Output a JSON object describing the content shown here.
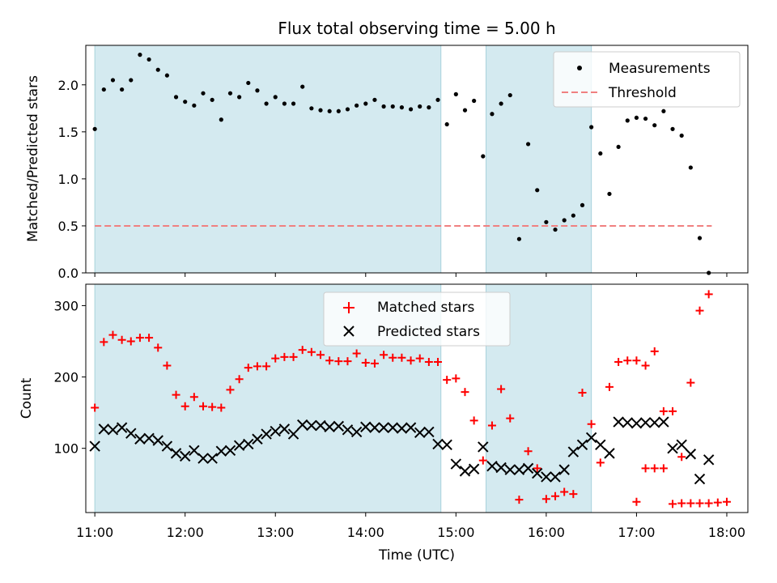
{
  "title": "Flux total observing time = 5.00 h",
  "chart_data": [
    {
      "type": "scatter",
      "panel": "top",
      "ylabel": "Matched/Predicted stars",
      "xlabel": "",
      "x_range": [
        "10:54",
        "18:14"
      ],
      "ylim": [
        0,
        2.42
      ],
      "yticks": [
        0.0,
        0.5,
        1.0,
        1.5,
        2.0
      ],
      "ytick_labels": [
        "0.0",
        "0.5",
        "1.0",
        "1.5",
        "2.0"
      ],
      "grid": false,
      "legend_position": "top-right",
      "shaded_intervals": [
        [
          "11:00",
          "14:50"
        ],
        [
          "15:20",
          "16:30"
        ]
      ],
      "shade_color": "#d4eaf0",
      "threshold": {
        "name": "Threshold",
        "value": 0.5,
        "x_start": "11:00",
        "x_end": "17:50",
        "color": "#f08080"
      },
      "series": [
        {
          "name": "Measurements",
          "color": "#000000",
          "x": [
            "11:00",
            "11:06",
            "11:12",
            "11:18",
            "11:24",
            "11:30",
            "11:36",
            "11:42",
            "11:48",
            "11:54",
            "12:00",
            "12:06",
            "12:12",
            "12:18",
            "12:24",
            "12:30",
            "12:36",
            "12:42",
            "12:48",
            "12:54",
            "13:00",
            "13:06",
            "13:12",
            "13:18",
            "13:24",
            "13:30",
            "13:36",
            "13:42",
            "13:48",
            "13:54",
            "14:00",
            "14:06",
            "14:12",
            "14:18",
            "14:24",
            "14:30",
            "14:36",
            "14:42",
            "14:48",
            "14:54",
            "15:00",
            "15:06",
            "15:12",
            "15:18",
            "15:24",
            "15:30",
            "15:36",
            "15:42",
            "15:48",
            "15:54",
            "16:00",
            "16:06",
            "16:12",
            "16:18",
            "16:24",
            "16:30",
            "16:36",
            "16:42",
            "16:48",
            "16:54",
            "17:00",
            "17:06",
            "17:12",
            "17:18",
            "17:24",
            "17:30",
            "17:36",
            "17:42",
            "17:48"
          ],
          "y": [
            1.53,
            1.95,
            2.05,
            1.95,
            2.05,
            2.32,
            2.27,
            2.16,
            2.1,
            1.87,
            1.82,
            1.78,
            1.91,
            1.84,
            1.63,
            1.91,
            1.87,
            2.02,
            1.94,
            1.8,
            1.87,
            1.8,
            1.8,
            1.98,
            1.75,
            1.73,
            1.72,
            1.72,
            1.74,
            1.78,
            1.8,
            1.84,
            1.77,
            1.77,
            1.76,
            1.74,
            1.77,
            1.76,
            1.84,
            1.58,
            1.9,
            1.73,
            1.83,
            1.24,
            1.69,
            1.8,
            1.89,
            0.36,
            1.37,
            0.88,
            0.54,
            0.46,
            0.56,
            0.61,
            0.72,
            1.55,
            1.27,
            0.84,
            1.34,
            1.62,
            1.65,
            1.64,
            1.57,
            1.72,
            1.53,
            1.46,
            1.12,
            0.37,
            0.0
          ]
        }
      ]
    },
    {
      "type": "scatter",
      "panel": "bottom",
      "ylabel": "Count",
      "xlabel": "Time (UTC)",
      "x_range": [
        "10:54",
        "18:14"
      ],
      "xticks": [
        "11:00",
        "12:00",
        "13:00",
        "14:00",
        "15:00",
        "16:00",
        "17:00",
        "18:00"
      ],
      "ylim": [
        10,
        330
      ],
      "yticks": [
        100,
        200,
        300
      ],
      "ytick_labels": [
        "100",
        "200",
        "300"
      ],
      "grid": false,
      "legend_position": "top-center",
      "shaded_intervals": [
        [
          "11:00",
          "14:50"
        ],
        [
          "15:20",
          "16:30"
        ]
      ],
      "shade_color": "#d4eaf0",
      "series": [
        {
          "name": "Matched stars",
          "color": "#ff0000",
          "marker": "+",
          "x": [
            "11:00",
            "11:06",
            "11:12",
            "11:18",
            "11:24",
            "11:30",
            "11:36",
            "11:42",
            "11:48",
            "11:54",
            "12:00",
            "12:06",
            "12:12",
            "12:18",
            "12:24",
            "12:30",
            "12:36",
            "12:42",
            "12:48",
            "12:54",
            "13:00",
            "13:06",
            "13:12",
            "13:18",
            "13:24",
            "13:30",
            "13:36",
            "13:42",
            "13:48",
            "13:54",
            "14:00",
            "14:06",
            "14:12",
            "14:18",
            "14:24",
            "14:30",
            "14:36",
            "14:42",
            "14:48",
            "14:54",
            "15:00",
            "15:06",
            "15:12",
            "15:18",
            "15:24",
            "15:30",
            "15:36",
            "15:42",
            "15:48",
            "15:54",
            "16:00",
            "16:06",
            "16:12",
            "16:18",
            "16:24",
            "16:30",
            "16:36",
            "16:42",
            "16:48",
            "16:54",
            "17:00",
            "17:06",
            "17:12",
            "17:18",
            "17:24",
            "17:30",
            "17:36",
            "17:42",
            "17:48",
            "17:54",
            "18:00"
          ],
          "y": [
            157,
            249,
            259,
            252,
            250,
            255,
            255,
            241,
            216,
            175,
            159,
            172,
            159,
            158,
            157,
            182,
            197,
            213,
            215,
            215,
            226,
            228,
            228,
            238,
            235,
            231,
            223,
            222,
            222,
            233,
            220,
            219,
            231,
            227,
            227,
            223,
            226,
            221,
            221,
            196,
            198,
            179,
            139,
            83,
            132,
            183,
            142,
            28,
            96,
            72,
            29,
            33,
            39,
            36,
            178,
            134,
            80,
            186,
            221,
            223,
            223,
            216,
            236,
            152,
            152,
            23,
            23,
            23,
            23,
            24,
            25
          ],
          "x2": [
            "17:00",
            "17:06",
            "17:12",
            "17:18",
            "17:24",
            "17:30",
            "17:36",
            "17:42",
            "17:48"
          ],
          "y2": [
            25,
            72,
            72,
            72,
            22,
            88,
            192,
            293,
            316
          ]
        },
        {
          "name": "Predicted stars",
          "color": "#000000",
          "marker": "x",
          "x": [
            "11:00",
            "11:06",
            "11:12",
            "11:18",
            "11:24",
            "11:30",
            "11:36",
            "11:42",
            "11:48",
            "11:54",
            "12:00",
            "12:06",
            "12:12",
            "12:18",
            "12:24",
            "12:30",
            "12:36",
            "12:42",
            "12:48",
            "12:54",
            "13:00",
            "13:06",
            "13:12",
            "13:18",
            "13:24",
            "13:30",
            "13:36",
            "13:42",
            "13:48",
            "13:54",
            "14:00",
            "14:06",
            "14:12",
            "14:18",
            "14:24",
            "14:30",
            "14:36",
            "14:42",
            "14:48",
            "14:54",
            "15:00",
            "15:06",
            "15:12",
            "15:18",
            "15:24",
            "15:30",
            "15:36",
            "15:42",
            "15:48",
            "15:54",
            "16:00",
            "16:06",
            "16:12",
            "16:18",
            "16:24",
            "16:30",
            "16:36",
            "16:42",
            "16:48",
            "16:54",
            "17:00",
            "17:06",
            "17:12",
            "17:18",
            "17:24",
            "17:30",
            "17:36",
            "17:42",
            "17:48"
          ],
          "y": [
            103,
            127,
            126,
            129,
            121,
            113,
            114,
            111,
            103,
            93,
            89,
            97,
            86,
            86,
            96,
            97,
            104,
            106,
            113,
            120,
            124,
            127,
            120,
            133,
            132,
            132,
            130,
            131,
            126,
            123,
            130,
            129,
            129,
            129,
            128,
            129,
            122,
            123,
            106,
            105,
            78,
            68,
            71,
            102,
            75,
            73,
            70,
            70,
            72,
            65,
            60,
            60,
            70,
            95,
            105,
            115,
            105,
            93,
            137,
            136,
            135,
            136,
            136,
            137,
            100,
            105,
            92,
            57,
            84
          ]
        }
      ]
    }
  ]
}
